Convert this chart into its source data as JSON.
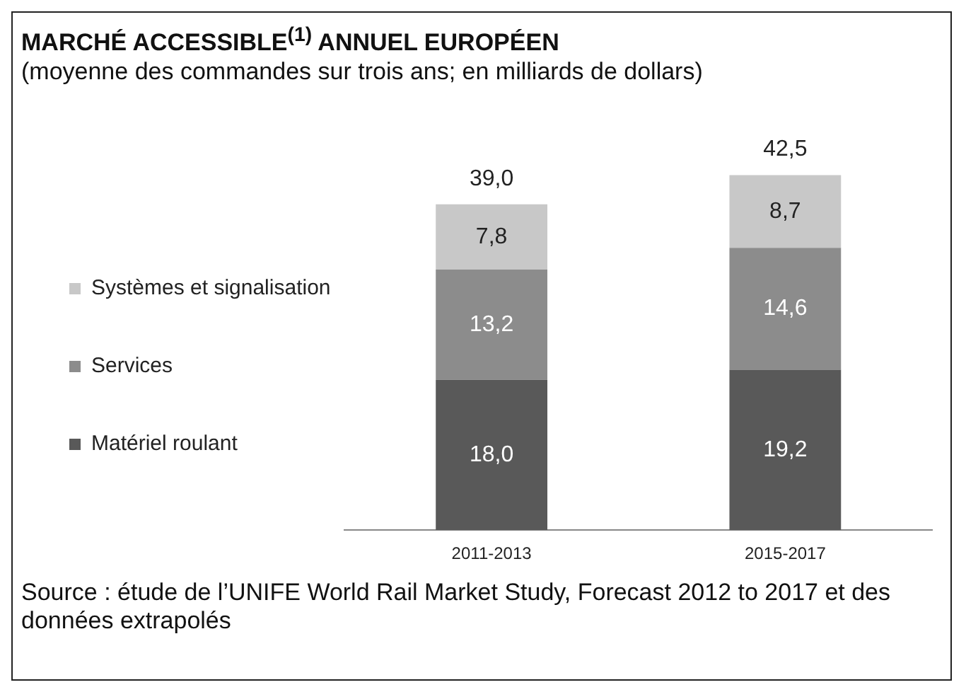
{
  "chart_data": {
    "type": "bar",
    "title": "MARCHÉ ACCESSIBLE$^{(1)}$ ANNUEL EUROPÉEN",
    "subtitle": "(moyenne des commandes sur trois ans; en milliards de dollars)",
    "categories": [
      "2011-2013",
      "2015-2017"
    ],
    "stacked": true,
    "legend": "left",
    "grid": false,
    "series": [
      {
        "name": "Matériel roulant",
        "color": "#595959",
        "values": [
          18.0,
          19.2
        ],
        "value_labels": [
          "18,0",
          "19,2"
        ]
      },
      {
        "name": "Services",
        "color": "#8c8c8c",
        "values": [
          13.2,
          14.6
        ],
        "value_labels": [
          "13,2",
          "14,6"
        ]
      },
      {
        "name": "Systèmes et signalisation",
        "color": "#c8c8c8",
        "values": [
          7.8,
          8.7
        ],
        "value_labels": [
          "7,8",
          "8,7"
        ]
      }
    ],
    "totals": [
      "39,0",
      "42,5"
    ],
    "annotations": [
      "Source : étude de l’UNIFE World Rail Market Study, Forecast 2012 to 2017 et des données extrapolés"
    ]
  }
}
